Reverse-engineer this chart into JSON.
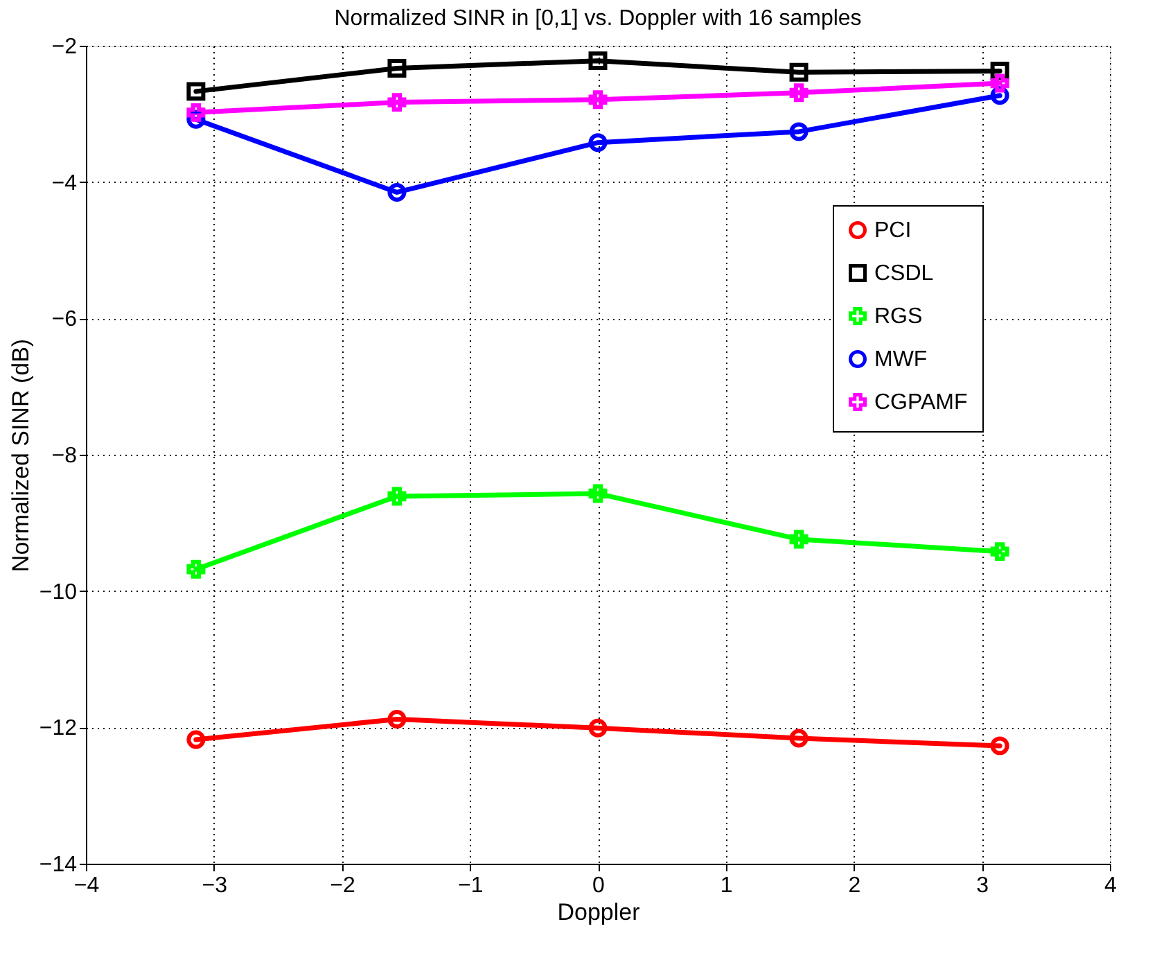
{
  "chart_data": {
    "type": "line",
    "title": "Normalized SINR in [0,1] vs. Doppler with 16 samples",
    "xlabel": "Doppler",
    "ylabel": "Normalized SINR (dB)",
    "x": [
      -3.14,
      -1.57,
      0,
      1.57,
      3.14
    ],
    "series": [
      {
        "name": "PCI",
        "color": "#ff0000",
        "marker": "circle",
        "values": [
          -12.18,
          -11.88,
          -12.01,
          -12.16,
          -12.27
        ]
      },
      {
        "name": "CSDL",
        "color": "#000000",
        "marker": "square",
        "values": [
          -2.67,
          -2.33,
          -2.22,
          -2.39,
          -2.37
        ]
      },
      {
        "name": "RGS",
        "color": "#00ff00",
        "marker": "cross",
        "values": [
          -9.68,
          -8.61,
          -8.57,
          -9.24,
          -9.42
        ]
      },
      {
        "name": "MWF",
        "color": "#0000ff",
        "marker": "circle",
        "values": [
          -3.08,
          -4.15,
          -3.42,
          -3.26,
          -2.73
        ]
      },
      {
        "name": "CGPAMF",
        "color": "#ff00ff",
        "marker": "cross",
        "values": [
          -2.98,
          -2.83,
          -2.79,
          -2.69,
          -2.55
        ]
      }
    ],
    "xlim": [
      -4,
      4
    ],
    "xticks": [
      -4,
      -3,
      -2,
      -1,
      0,
      1,
      2,
      3,
      4
    ],
    "ylim": [
      -14,
      -2
    ],
    "yticks": [
      -14,
      -12,
      -10,
      -8,
      -6,
      -4,
      -2
    ],
    "grid": true,
    "legend": "top right",
    "line_style": "solid"
  }
}
